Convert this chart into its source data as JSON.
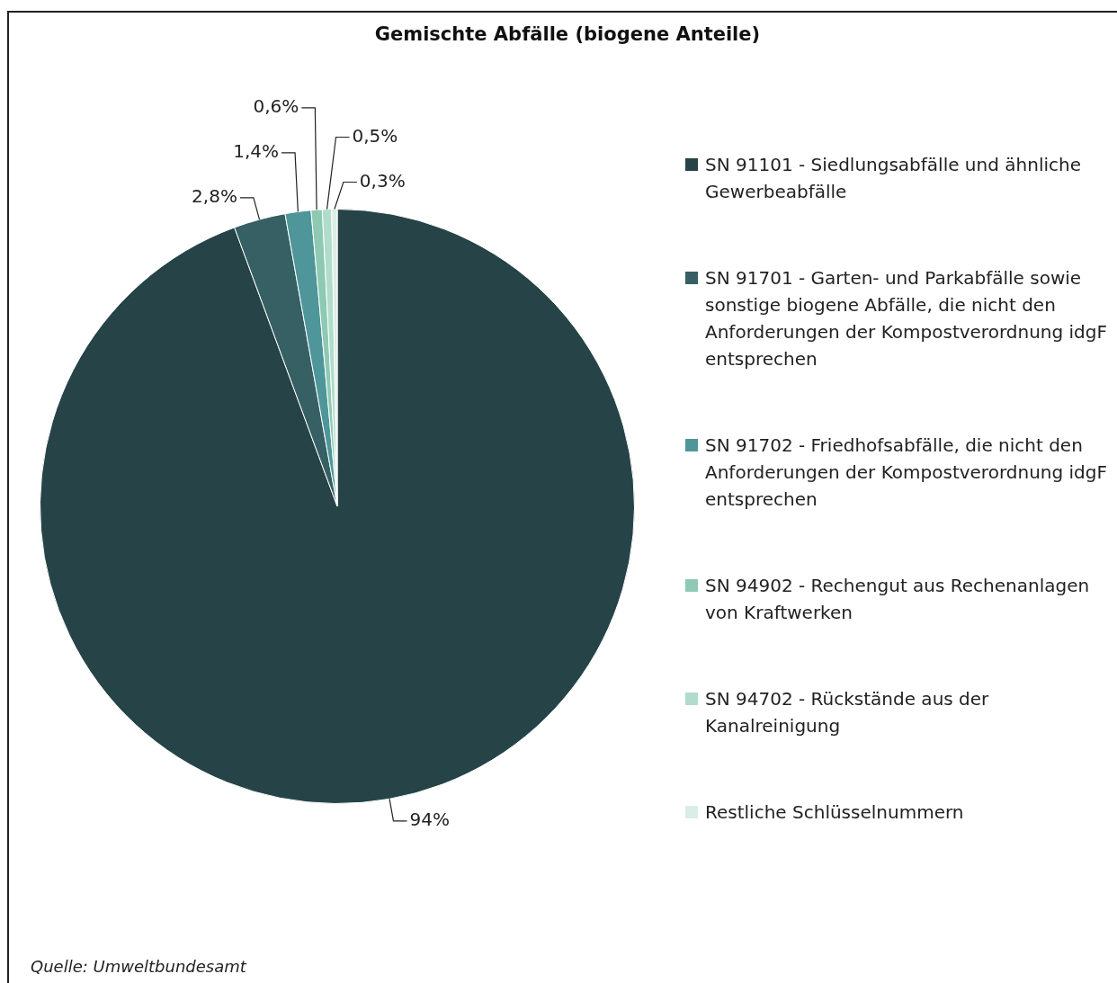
{
  "chart_data": {
    "type": "pie",
    "title": "Gemischte Abfälle (biogene Anteile)",
    "categories": [
      "SN 91101 - Siedlungsabfälle und ähnliche Gewerbeabfälle",
      "SN 91701 - Garten- und Parkabfälle sowie sonstige biogene Abfälle, die nicht den Anforderungen der Kompostverordnung idgF entsprechen",
      "SN 91702 - Friedhofsabfälle, die nicht den Anforderungen der Kompostverordnung idgF entsprechen",
      "SN 94902 - Rechengut aus Rechenanlagen von Kraftwerken",
      "SN 94702 - Rückstände aus der Kanalreinigung",
      "Restliche Schlüsselnummern"
    ],
    "values": [
      94,
      2.8,
      1.4,
      0.6,
      0.5,
      0.3
    ],
    "value_labels": [
      "94%",
      "2,8%",
      "1,4%",
      "0,6%",
      "0,5%",
      "0,3%"
    ],
    "colors": [
      "#264447",
      "#366063",
      "#4e9699",
      "#8ec9b4",
      "#b0dccb",
      "#daede6"
    ],
    "legend": "right",
    "annotations": [
      "Quelle: Umweltbundesamt"
    ]
  }
}
